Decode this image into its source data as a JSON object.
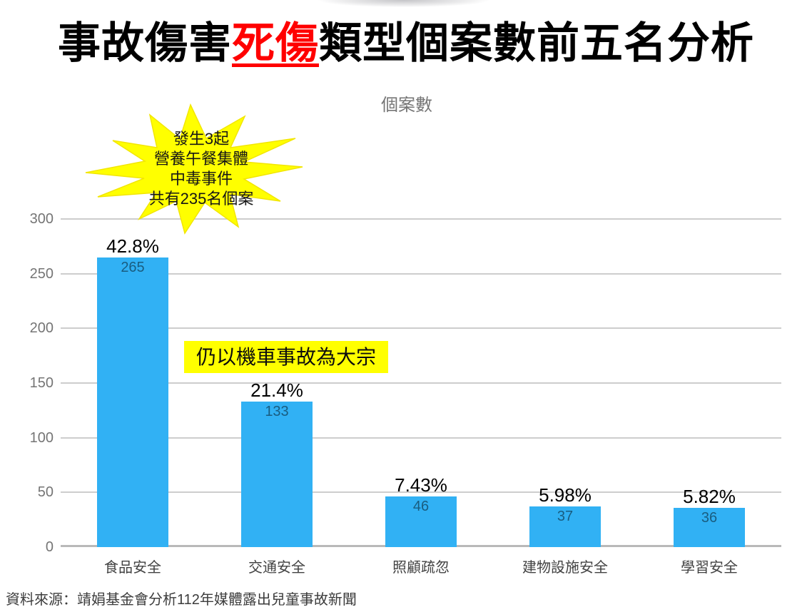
{
  "page": {
    "title": {
      "prefix": "事故傷害",
      "highlight": "死傷",
      "suffix": "類型個案數前五名分析"
    },
    "source_note": "資料來源：靖娟基金會分析112年媒體露出兒童事故新聞"
  },
  "colors": {
    "bar": "#31B1F4",
    "annotation_yellow": "#FFFF00",
    "title_highlight_red": "#FF0000",
    "gridline": "#CDCDCD",
    "baseline": "#B9B9B9",
    "axis_text": "#757575",
    "category_text": "#424242",
    "value_text_in_bar": "rgba(0,0,0,0.48)"
  },
  "chart_data": {
    "type": "bar",
    "title": "個案數",
    "categories": [
      "食品安全",
      "交通安全",
      "照顧疏忽",
      "建物設施安全",
      "學習安全"
    ],
    "values": [
      265,
      133,
      46,
      37,
      36
    ],
    "percent_labels": [
      "42.8%",
      "21.4%",
      "7.43%",
      "5.98%",
      "5.82%"
    ],
    "xlabel": "",
    "ylabel": "",
    "ylim": [
      0,
      300
    ],
    "yticks": [
      0,
      50,
      100,
      150,
      200,
      250,
      300
    ],
    "grid": true,
    "legend_position": "none",
    "annotations": [
      {
        "type": "starburst",
        "lines": [
          "發生3起",
          "營養午餐集體",
          "中毒事件",
          "共有235名個案"
        ]
      },
      {
        "type": "highlight",
        "text": "仍以機車事故為大宗"
      }
    ]
  }
}
